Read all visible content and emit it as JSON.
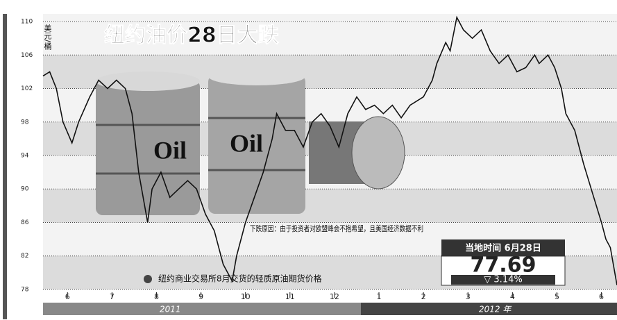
{
  "chart_data": {
    "type": "line",
    "title": "纽约油价28日大跌",
    "y_label": "美元/桶",
    "x": [
      -0.55,
      -0.4,
      -0.25,
      -0.1,
      0.1,
      0.25,
      0.5,
      0.7,
      0.9,
      1.1,
      1.3,
      1.45,
      1.6,
      1.8,
      1.9,
      2.1,
      2.3,
      2.5,
      2.7,
      2.9,
      3.1,
      3.3,
      3.5,
      3.7,
      3.8,
      4.0,
      4.2,
      4.4,
      4.6,
      4.7,
      4.9,
      5.1,
      5.3,
      5.5,
      5.7,
      5.9,
      6.1,
      6.3,
      6.5,
      6.7,
      6.9,
      7.1,
      7.3,
      7.5,
      7.7,
      8.0,
      8.2,
      8.3,
      8.5,
      8.6,
      8.75,
      8.9,
      9.1,
      9.3,
      9.5,
      9.7,
      9.9,
      10.1,
      10.3,
      10.5,
      10.6,
      10.8,
      10.95,
      11.1,
      11.2,
      11.4,
      11.6,
      11.8,
      12.0,
      12.1,
      12.2,
      12.3,
      12.35
    ],
    "series": [
      {
        "name": "纽约商业交易所8月交货的轻质原油期货价格",
        "color": "#111111",
        "values": [
          103.5,
          104,
          102,
          98,
          95.5,
          98,
          101,
          103,
          102,
          103,
          102,
          99,
          92,
          86,
          90,
          92,
          89,
          90,
          91,
          90,
          87,
          85,
          81,
          79,
          82,
          86,
          89,
          92,
          96,
          99,
          97,
          97,
          95,
          98,
          99,
          97.5,
          95,
          99,
          101,
          99.5,
          100,
          99,
          100,
          98.5,
          100,
          101,
          103,
          105,
          107.5,
          106.5,
          110.5,
          109,
          108,
          109,
          106.5,
          105,
          106,
          104,
          104.5,
          106,
          105,
          106,
          104.5,
          102,
          99,
          97,
          93,
          89.5,
          86,
          84,
          83,
          80,
          78.5
        ]
      }
    ],
    "xlim": [
      -0.55,
      12.35
    ],
    "xticks": [
      {
        "value": 0,
        "label": "6"
      },
      {
        "value": 1,
        "label": "7"
      },
      {
        "value": 2,
        "label": "8"
      },
      {
        "value": 3,
        "label": "9"
      },
      {
        "value": 4,
        "label": "10"
      },
      {
        "value": 5,
        "label": "11"
      },
      {
        "value": 6,
        "label": "12"
      },
      {
        "value": 7,
        "label": "1"
      },
      {
        "value": 8,
        "label": "2"
      },
      {
        "value": 9,
        "label": "3"
      },
      {
        "value": 10,
        "label": "4"
      },
      {
        "value": 11,
        "label": "5"
      },
      {
        "value": 12,
        "label": "6"
      }
    ],
    "x_groups": [
      "2011",
      "2012 年"
    ],
    "ylim": [
      77,
      111
    ],
    "yticks": [
      78,
      82,
      86,
      90,
      94,
      98,
      102,
      106,
      110
    ],
    "grid": true,
    "annotation": "下跌原因：由于投资者对欧盟峰会不抱希望，且美国经济数据不利",
    "box_header": "当地时间 6月28日",
    "latest_value": 77.69,
    "change": "▽ 3.14%",
    "illustration_labels": [
      "Oil",
      "Oil"
    ]
  }
}
